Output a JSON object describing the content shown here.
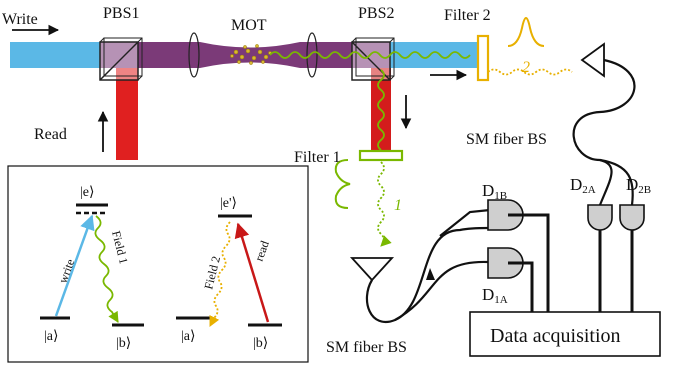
{
  "labels": {
    "write": "Write",
    "pbs1": "PBS1",
    "mot": "MOT",
    "pbs2": "PBS2",
    "filter2": "Filter 2",
    "read": "Read",
    "filter1": "Filter 1",
    "sm_fiber_bs_top": "SM fiber BS",
    "sm_fiber_bs_bottom": "SM fiber BS",
    "data_acquisition": "Data acquisition",
    "path1": "1",
    "path2": "2"
  },
  "detectors": {
    "d1b": {
      "main": "D",
      "sub": "1B"
    },
    "d1a": {
      "main": "D",
      "sub": "1A"
    },
    "d2a": {
      "main": "D",
      "sub": "2A"
    },
    "d2b": {
      "main": "D",
      "sub": "2B"
    }
  },
  "levels": {
    "e": "|e⟩",
    "e_prime": "|e'⟩",
    "a_left": "|a⟩",
    "b_left": "|b⟩",
    "a_right": "|a⟩",
    "b_right": "|b⟩",
    "write": "write",
    "field1": "Field 1",
    "field2": "Field 2",
    "read": "read"
  },
  "colors": {
    "write_beam": "#5bb8e6",
    "read_beam": "#e02020",
    "overlap_beam": "#7b3a78",
    "field1": "#7ab800",
    "field2": "#e8b000"
  }
}
